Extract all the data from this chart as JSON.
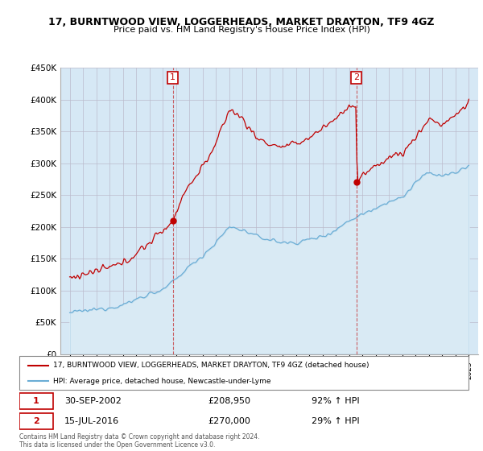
{
  "title": "17, BURNTWOOD VIEW, LOGGERHEADS, MARKET DRAYTON, TF9 4GZ",
  "subtitle": "Price paid vs. HM Land Registry's House Price Index (HPI)",
  "legend_line1": "17, BURNTWOOD VIEW, LOGGERHEADS, MARKET DRAYTON, TF9 4GZ (detached house)",
  "legend_line2": "HPI: Average price, detached house, Newcastle-under-Lyme",
  "annotation1_date": "30-SEP-2002",
  "annotation1_price": "£208,950",
  "annotation1_hpi": "92% ↑ HPI",
  "annotation1_year": 2002.75,
  "annotation1_value": 208950,
  "annotation2_date": "15-JUL-2016",
  "annotation2_price": "£270,000",
  "annotation2_hpi": "29% ↑ HPI",
  "annotation2_year": 2016.54,
  "annotation2_value": 270000,
  "hpi_color": "#6aadd5",
  "hpi_fill_color": "#d6e8f5",
  "price_color": "#c00000",
  "footnote": "Contains HM Land Registry data © Crown copyright and database right 2024.\nThis data is licensed under the Open Government Licence v3.0.",
  "ylim": [
    0,
    450000
  ],
  "yticks": [
    0,
    50000,
    100000,
    150000,
    200000,
    250000,
    300000,
    350000,
    400000,
    450000
  ],
  "bg_color": "#ddeeff"
}
